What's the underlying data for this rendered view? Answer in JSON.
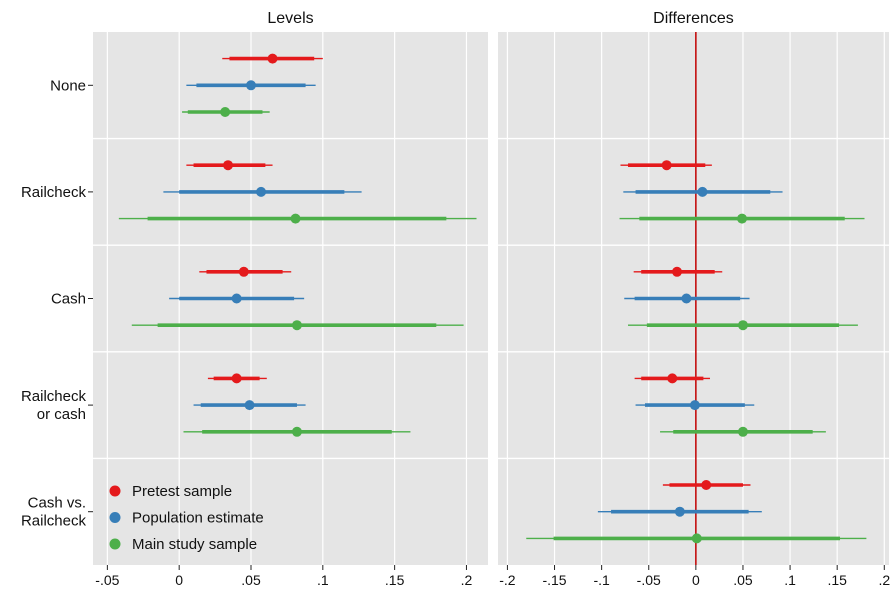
{
  "chart_data": [
    {
      "type": "forest",
      "title": "Levels",
      "xlim": [
        -0.06,
        0.215
      ],
      "xticks": [
        -0.05,
        0,
        0.05,
        0.1,
        0.15,
        0.2
      ],
      "xtick_labels": [
        "-.05",
        "0",
        ".05",
        ".1",
        ".15",
        ".2"
      ],
      "grid": true,
      "reference_line": null,
      "categories": [
        "None",
        "Railcheck",
        "Cash",
        "Railcheck or cash",
        "Cash vs. Railcheck"
      ],
      "category_label_lines": [
        [
          "None"
        ],
        [
          "Railcheck"
        ],
        [
          "Cash"
        ],
        [
          "Railcheck",
          "or cash"
        ],
        [
          "Cash vs.",
          "Railcheck"
        ]
      ],
      "series": [
        {
          "name": "Pretest sample",
          "color": "#e41a1c",
          "points": [
            {
              "category": "None",
              "estimate": 0.065,
              "ci_inner": [
                0.035,
                0.094
              ],
              "ci_outer": [
                0.03,
                0.1
              ]
            },
            {
              "category": "Railcheck",
              "estimate": 0.034,
              "ci_inner": [
                0.01,
                0.06
              ],
              "ci_outer": [
                0.005,
                0.065
              ]
            },
            {
              "category": "Cash",
              "estimate": 0.045,
              "ci_inner": [
                0.019,
                0.072
              ],
              "ci_outer": [
                0.014,
                0.078
              ]
            },
            {
              "category": "Railcheck or cash",
              "estimate": 0.04,
              "ci_inner": [
                0.024,
                0.056
              ],
              "ci_outer": [
                0.02,
                0.061
              ]
            }
          ]
        },
        {
          "name": "Population estimate",
          "color": "#377eb8",
          "points": [
            {
              "category": "None",
              "estimate": 0.05,
              "ci_inner": [
                0.012,
                0.088
              ],
              "ci_outer": [
                0.005,
                0.095
              ]
            },
            {
              "category": "Railcheck",
              "estimate": 0.057,
              "ci_inner": [
                0.0,
                0.115
              ],
              "ci_outer": [
                -0.011,
                0.127
              ]
            },
            {
              "category": "Cash",
              "estimate": 0.04,
              "ci_inner": [
                0.0,
                0.08
              ],
              "ci_outer": [
                -0.007,
                0.087
              ]
            },
            {
              "category": "Railcheck or cash",
              "estimate": 0.049,
              "ci_inner": [
                0.015,
                0.082
              ],
              "ci_outer": [
                0.01,
                0.088
              ]
            }
          ]
        },
        {
          "name": "Main study sample",
          "color": "#4daf4a",
          "points": [
            {
              "category": "None",
              "estimate": 0.032,
              "ci_inner": [
                0.006,
                0.058
              ],
              "ci_outer": [
                0.002,
                0.063
              ]
            },
            {
              "category": "Railcheck",
              "estimate": 0.081,
              "ci_inner": [
                -0.022,
                0.186
              ],
              "ci_outer": [
                -0.042,
                0.207
              ]
            },
            {
              "category": "Cash",
              "estimate": 0.082,
              "ci_inner": [
                -0.015,
                0.179
              ],
              "ci_outer": [
                -0.033,
                0.198
              ]
            },
            {
              "category": "Railcheck or cash",
              "estimate": 0.082,
              "ci_inner": [
                0.016,
                0.148
              ],
              "ci_outer": [
                0.003,
                0.161
              ]
            }
          ]
        }
      ]
    },
    {
      "type": "forest",
      "title": "Differences",
      "xlim": [
        -0.21,
        0.205
      ],
      "xticks": [
        -0.2,
        -0.15,
        -0.1,
        -0.05,
        0,
        0.05,
        0.1,
        0.15,
        0.2
      ],
      "xtick_labels": [
        "-.2",
        "-.15",
        "-.1",
        "-.05",
        "0",
        ".05",
        ".1",
        ".15",
        ".2"
      ],
      "grid": true,
      "reference_line": {
        "x": 0,
        "color": "#c00000"
      },
      "categories": [
        "None",
        "Railcheck",
        "Cash",
        "Railcheck or cash",
        "Cash vs. Railcheck"
      ],
      "series": [
        {
          "name": "Pretest sample",
          "color": "#e41a1c",
          "points": [
            {
              "category": "Railcheck",
              "estimate": -0.031,
              "ci_inner": [
                -0.072,
                0.01
              ],
              "ci_outer": [
                -0.08,
                0.017
              ]
            },
            {
              "category": "Cash",
              "estimate": -0.02,
              "ci_inner": [
                -0.058,
                0.02
              ],
              "ci_outer": [
                -0.066,
                0.028
              ]
            },
            {
              "category": "Railcheck or cash",
              "estimate": -0.025,
              "ci_inner": [
                -0.058,
                0.008
              ],
              "ci_outer": [
                -0.065,
                0.015
              ]
            },
            {
              "category": "Cash vs. Railcheck",
              "estimate": 0.011,
              "ci_inner": [
                -0.028,
                0.05
              ],
              "ci_outer": [
                -0.035,
                0.058
              ]
            }
          ]
        },
        {
          "name": "Population estimate",
          "color": "#377eb8",
          "points": [
            {
              "category": "Railcheck",
              "estimate": 0.007,
              "ci_inner": [
                -0.064,
                0.079
              ],
              "ci_outer": [
                -0.077,
                0.092
              ]
            },
            {
              "category": "Cash",
              "estimate": -0.01,
              "ci_inner": [
                -0.065,
                0.047
              ],
              "ci_outer": [
                -0.076,
                0.057
              ]
            },
            {
              "category": "Railcheck or cash",
              "estimate": -0.001,
              "ci_inner": [
                -0.054,
                0.052
              ],
              "ci_outer": [
                -0.064,
                0.062
              ]
            },
            {
              "category": "Cash vs. Railcheck",
              "estimate": -0.017,
              "ci_inner": [
                -0.09,
                0.056
              ],
              "ci_outer": [
                -0.104,
                0.07
              ]
            }
          ]
        },
        {
          "name": "Main study sample",
          "color": "#4daf4a",
          "points": [
            {
              "category": "Railcheck",
              "estimate": 0.049,
              "ci_inner": [
                -0.06,
                0.158
              ],
              "ci_outer": [
                -0.081,
                0.179
              ]
            },
            {
              "category": "Cash",
              "estimate": 0.05,
              "ci_inner": [
                -0.052,
                0.152
              ],
              "ci_outer": [
                -0.072,
                0.172
              ]
            },
            {
              "category": "Railcheck or cash",
              "estimate": 0.05,
              "ci_inner": [
                -0.024,
                0.124
              ],
              "ci_outer": [
                -0.038,
                0.138
              ]
            },
            {
              "category": "Cash vs. Railcheck",
              "estimate": 0.001,
              "ci_inner": [
                -0.151,
                0.153
              ],
              "ci_outer": [
                -0.18,
                0.181
              ]
            }
          ]
        }
      ]
    }
  ],
  "legend": {
    "placement": "bottom-left",
    "entries": [
      {
        "label": "Pretest sample",
        "color": "#e41a1c"
      },
      {
        "label": "Population estimate",
        "color": "#377eb8"
      },
      {
        "label": "Main study sample",
        "color": "#4daf4a"
      }
    ]
  },
  "colors": {
    "panel_background": "#e5e5e5",
    "grid": "#ffffff",
    "text": "#111111"
  }
}
